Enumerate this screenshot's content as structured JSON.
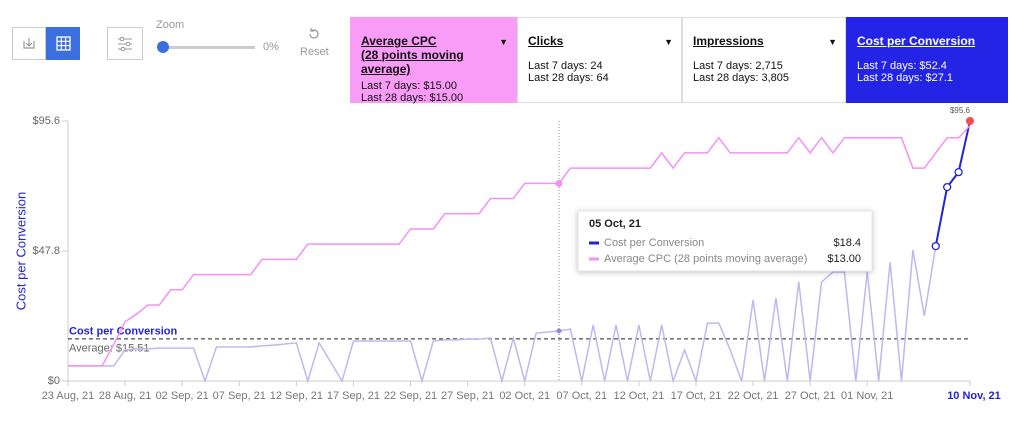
{
  "toolbar": {
    "zoom_label": "Zoom",
    "zoom_value": "0%",
    "reset_label": "Reset"
  },
  "cards": [
    {
      "title": "Average CPC",
      "subtitle": "(28 points moving average)",
      "last7": "Last 7 days: $15.00",
      "last28": "Last 28 days: $15.00",
      "color": "#f99cf7"
    },
    {
      "title": "Clicks",
      "last7": "Last 7 days: 24",
      "last28": "Last 28 days: 64",
      "color": "#ffffff"
    },
    {
      "title": "Impressions",
      "last7": "Last 7 days: 2,715",
      "last28": "Last 28 days: 3,805",
      "color": "#ffffff"
    },
    {
      "title": "Cost per Conversion",
      "last7": "Last 7 days: $52.4",
      "last28": "Last 28 days: $27.1",
      "color": "#2424e6"
    }
  ],
  "tooltip": {
    "date": "05 Oct, 21",
    "values": [
      "$18.4",
      "$13.00"
    ]
  },
  "chart_data": {
    "type": "line",
    "y_axis_label": "Cost per Conversion",
    "categories": [
      "23 Aug, 21",
      null,
      null,
      null,
      null,
      "28 Aug, 21",
      null,
      null,
      null,
      null,
      "02 Sep, 21",
      null,
      null,
      null,
      null,
      "07 Sep, 21",
      null,
      null,
      null,
      null,
      "12 Sep, 21",
      null,
      null,
      null,
      null,
      "17 Sep, 21",
      null,
      null,
      null,
      null,
      "22 Sep, 21",
      null,
      null,
      null,
      null,
      "27 Sep, 21",
      null,
      null,
      null,
      null,
      "02 Oct, 21",
      null,
      null,
      null,
      null,
      "07 Oct, 21",
      null,
      null,
      null,
      null,
      "12 Oct, 21",
      null,
      null,
      null,
      null,
      "17 Oct, 21",
      null,
      null,
      null,
      null,
      "22 Oct, 21",
      null,
      null,
      null,
      null,
      "27 Oct, 21",
      null,
      null,
      null,
      null,
      "01 Nov, 21",
      null,
      null,
      null,
      null,
      null,
      null,
      null,
      null,
      "10 Nov, 21"
    ],
    "ylim": [
      0,
      95.6
    ],
    "yticks": [
      {
        "value": 0,
        "label": "$0"
      },
      {
        "value": 47.8,
        "label": "$47.8"
      },
      {
        "value": 95.6,
        "label": "$95.6"
      }
    ],
    "y2lim": [
      0,
      17.1
    ],
    "series": [
      {
        "name": "Cost per Conversion",
        "color": "#bdb9ef",
        "highlight_color": "#2323d8",
        "values": [
          5.5,
          5.5,
          5.5,
          5.5,
          5.5,
          11.4,
          11.8,
          11.8,
          12.1,
          12.1,
          12.1,
          12.1,
          0,
          12.5,
          12.5,
          12.5,
          12.5,
          12.9,
          13.2,
          13.6,
          14.0,
          0,
          14.0,
          7.0,
          0,
          14.7,
          14.7,
          14.7,
          14.7,
          14.7,
          14.7,
          0,
          14.7,
          15.1,
          15.1,
          15.4,
          15.4,
          15.8,
          0,
          15.8,
          0,
          17.6,
          18.0,
          18.4,
          19.1,
          0,
          20.6,
          0,
          20.6,
          0,
          20.6,
          0,
          20.6,
          0,
          11.4,
          0,
          21.3,
          21.3,
          11.4,
          0,
          29.8,
          0,
          30.5,
          0,
          36.4,
          0,
          36.4,
          40.1,
          40.1,
          0,
          40.1,
          0,
          43.7,
          0,
          48.2,
          23.9,
          49.6,
          71.3,
          76.8,
          95.6
        ],
        "value_labels": [
          null,
          null,
          null,
          null,
          null,
          null,
          null,
          null,
          null,
          null,
          null,
          null,
          null,
          null,
          null,
          null,
          null,
          null,
          null,
          null,
          null,
          null,
          null,
          null,
          null,
          null,
          null,
          null,
          null,
          null,
          null,
          null,
          null,
          null,
          null,
          null,
          null,
          null,
          null,
          null,
          null,
          null,
          null,
          null,
          null,
          null,
          null,
          null,
          null,
          null,
          null,
          null,
          null,
          null,
          null,
          null,
          null,
          null,
          null,
          null,
          null,
          null,
          null,
          null,
          null,
          null,
          null,
          null,
          null,
          null,
          null,
          null,
          null,
          null,
          null,
          null,
          null,
          null,
          null,
          "$95.6"
        ]
      },
      {
        "name": "Average CPC (28 points moving average)",
        "color": "#f590f5",
        "axis": "y2",
        "values": [
          1.0,
          1.0,
          1.0,
          1.0,
          2.4,
          3.9,
          4.4,
          5.0,
          5.0,
          6.0,
          6.0,
          7.0,
          7.0,
          7.0,
          7.0,
          7.0,
          7.0,
          8.0,
          8.0,
          8.0,
          8.0,
          9.0,
          9.0,
          9.0,
          9.0,
          9.0,
          9.0,
          9.0,
          9.0,
          9.0,
          10.0,
          10.0,
          10.0,
          11.0,
          11.0,
          11.0,
          11.0,
          12.0,
          12.0,
          12.0,
          13.0,
          13.0,
          13.0,
          13.0,
          14.0,
          14.0,
          14.0,
          14.0,
          14.0,
          14.0,
          14.0,
          14.0,
          15.0,
          14.0,
          15.0,
          15.0,
          15.0,
          16.0,
          15.0,
          15.0,
          15.0,
          15.0,
          15.0,
          15.0,
          16.0,
          15.0,
          16.0,
          15.0,
          16.0,
          16.0,
          16.0,
          16.0,
          16.0,
          16.0,
          14.0,
          14.0,
          15.0,
          16.0,
          16.0,
          16.8
        ]
      }
    ],
    "average_line": {
      "title": "Cost per Conversion",
      "value": 15.51,
      "label": "Average: $15.51"
    },
    "grid": false
  }
}
